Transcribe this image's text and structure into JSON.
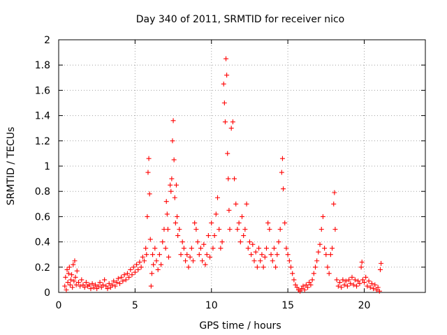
{
  "chart_data": {
    "type": "scatter",
    "title": "Day 340 of 2011, SRMTID for receiver nico",
    "xlabel": "GPS time / hours",
    "ylabel": "SRMTID / TECUs",
    "xlim": [
      0,
      24
    ],
    "ylim": [
      0,
      2
    ],
    "xticks": [
      0,
      5,
      10,
      15,
      20
    ],
    "yticks": [
      0,
      0.2,
      0.4,
      0.6,
      0.8,
      1,
      1.2,
      1.4,
      1.6,
      1.8,
      2
    ],
    "x_tick_labels": [
      "0",
      "5",
      "10",
      "15",
      "20"
    ],
    "y_tick_labels": [
      "0",
      "0.2",
      "0.4",
      "0.6",
      "0.8",
      "1",
      "1.2",
      "1.4",
      "1.6",
      "1.8",
      "2"
    ],
    "grid": true,
    "legend": "none",
    "marker": "plus",
    "series": [
      {
        "color": "#ff0000",
        "points": [
          [
            0.4,
            0.05
          ],
          [
            0.45,
            0.12
          ],
          [
            0.5,
            0.02
          ],
          [
            0.55,
            0.18
          ],
          [
            0.6,
            0.08
          ],
          [
            0.65,
            0.15
          ],
          [
            0.7,
            0.2
          ],
          [
            0.75,
            0.06
          ],
          [
            0.8,
            0.1
          ],
          [
            0.85,
            0.14
          ],
          [
            0.9,
            0.04
          ],
          [
            0.95,
            0.22
          ],
          [
            1.0,
            0.09
          ],
          [
            1.05,
            0.25
          ],
          [
            1.1,
            0.12
          ],
          [
            1.15,
            0.06
          ],
          [
            1.2,
            0.17
          ],
          [
            1.3,
            0.08
          ],
          [
            1.4,
            0.05
          ],
          [
            1.5,
            0.1
          ],
          [
            1.6,
            0.06
          ],
          [
            1.7,
            0.04
          ],
          [
            1.8,
            0.08
          ],
          [
            1.9,
            0.05
          ],
          [
            2.0,
            0.06
          ],
          [
            2.1,
            0.03
          ],
          [
            2.2,
            0.07
          ],
          [
            2.3,
            0.04
          ],
          [
            2.4,
            0.06
          ],
          [
            2.5,
            0.03
          ],
          [
            2.6,
            0.05
          ],
          [
            2.7,
            0.08
          ],
          [
            2.8,
            0.04
          ],
          [
            2.9,
            0.06
          ],
          [
            3.0,
            0.1
          ],
          [
            3.1,
            0.05
          ],
          [
            3.2,
            0.03
          ],
          [
            3.3,
            0.07
          ],
          [
            3.4,
            0.04
          ],
          [
            3.5,
            0.06
          ],
          [
            3.6,
            0.09
          ],
          [
            3.7,
            0.05
          ],
          [
            3.8,
            0.08
          ],
          [
            3.9,
            0.11
          ],
          [
            4.0,
            0.07
          ],
          [
            4.1,
            0.12
          ],
          [
            4.2,
            0.09
          ],
          [
            4.3,
            0.14
          ],
          [
            4.4,
            0.1
          ],
          [
            4.5,
            0.15
          ],
          [
            4.6,
            0.12
          ],
          [
            4.7,
            0.18
          ],
          [
            4.8,
            0.14
          ],
          [
            4.9,
            0.2
          ],
          [
            5.0,
            0.16
          ],
          [
            5.1,
            0.22
          ],
          [
            5.2,
            0.18
          ],
          [
            5.3,
            0.24
          ],
          [
            5.4,
            0.2
          ],
          [
            5.5,
            0.28
          ],
          [
            5.6,
            0.25
          ],
          [
            5.7,
            0.35
          ],
          [
            5.75,
            0.3
          ],
          [
            5.8,
            0.6
          ],
          [
            5.85,
            0.95
          ],
          [
            5.9,
            1.06
          ],
          [
            5.95,
            0.78
          ],
          [
            6.0,
            0.42
          ],
          [
            6.05,
            0.05
          ],
          [
            6.1,
            0.15
          ],
          [
            6.15,
            0.3
          ],
          [
            6.2,
            0.22
          ],
          [
            6.3,
            0.35
          ],
          [
            6.4,
            0.25
          ],
          [
            6.5,
            0.18
          ],
          [
            6.6,
            0.3
          ],
          [
            6.7,
            0.22
          ],
          [
            6.8,
            0.4
          ],
          [
            6.9,
            0.5
          ],
          [
            7.0,
            0.35
          ],
          [
            7.05,
            0.72
          ],
          [
            7.1,
            0.62
          ],
          [
            7.15,
            0.5
          ],
          [
            7.2,
            0.28
          ],
          [
            7.3,
            0.85
          ],
          [
            7.35,
            0.8
          ],
          [
            7.4,
            0.9
          ],
          [
            7.45,
            1.2
          ],
          [
            7.5,
            1.36
          ],
          [
            7.55,
            1.05
          ],
          [
            7.6,
            0.75
          ],
          [
            7.65,
            0.55
          ],
          [
            7.7,
            0.85
          ],
          [
            7.75,
            0.6
          ],
          [
            7.8,
            0.45
          ],
          [
            7.9,
            0.5
          ],
          [
            8.0,
            0.3
          ],
          [
            8.1,
            0.4
          ],
          [
            8.2,
            0.35
          ],
          [
            8.3,
            0.25
          ],
          [
            8.4,
            0.3
          ],
          [
            8.5,
            0.2
          ],
          [
            8.6,
            0.28
          ],
          [
            8.7,
            0.35
          ],
          [
            8.8,
            0.25
          ],
          [
            8.9,
            0.55
          ],
          [
            9.0,
            0.5
          ],
          [
            9.1,
            0.4
          ],
          [
            9.2,
            0.3
          ],
          [
            9.3,
            0.35
          ],
          [
            9.4,
            0.25
          ],
          [
            9.5,
            0.38
          ],
          [
            9.6,
            0.22
          ],
          [
            9.7,
            0.3
          ],
          [
            9.8,
            0.45
          ],
          [
            9.9,
            0.28
          ],
          [
            10.0,
            0.55
          ],
          [
            10.1,
            0.35
          ],
          [
            10.2,
            0.45
          ],
          [
            10.3,
            0.62
          ],
          [
            10.4,
            0.75
          ],
          [
            10.5,
            0.5
          ],
          [
            10.6,
            0.35
          ],
          [
            10.7,
            0.4
          ],
          [
            10.8,
            1.65
          ],
          [
            10.85,
            1.5
          ],
          [
            10.9,
            1.35
          ],
          [
            10.95,
            1.85
          ],
          [
            11.0,
            1.72
          ],
          [
            11.05,
            1.1
          ],
          [
            11.1,
            0.9
          ],
          [
            11.15,
            0.65
          ],
          [
            11.2,
            0.5
          ],
          [
            11.3,
            1.3
          ],
          [
            11.4,
            1.35
          ],
          [
            11.5,
            0.9
          ],
          [
            11.6,
            0.7
          ],
          [
            11.7,
            0.5
          ],
          [
            11.8,
            0.55
          ],
          [
            11.9,
            0.4
          ],
          [
            12.0,
            0.6
          ],
          [
            12.1,
            0.45
          ],
          [
            12.2,
            0.5
          ],
          [
            12.3,
            0.7
          ],
          [
            12.4,
            0.35
          ],
          [
            12.5,
            0.4
          ],
          [
            12.6,
            0.3
          ],
          [
            12.7,
            0.38
          ],
          [
            12.8,
            0.25
          ],
          [
            12.9,
            0.32
          ],
          [
            13.0,
            0.2
          ],
          [
            13.1,
            0.35
          ],
          [
            13.2,
            0.25
          ],
          [
            13.3,
            0.3
          ],
          [
            13.4,
            0.2
          ],
          [
            13.5,
            0.28
          ],
          [
            13.6,
            0.35
          ],
          [
            13.7,
            0.55
          ],
          [
            13.8,
            0.5
          ],
          [
            13.9,
            0.3
          ],
          [
            14.0,
            0.25
          ],
          [
            14.1,
            0.35
          ],
          [
            14.2,
            0.2
          ],
          [
            14.3,
            0.3
          ],
          [
            14.4,
            0.4
          ],
          [
            14.5,
            0.5
          ],
          [
            14.6,
            0.95
          ],
          [
            14.65,
            1.06
          ],
          [
            14.7,
            0.82
          ],
          [
            14.8,
            0.55
          ],
          [
            14.9,
            0.35
          ],
          [
            15.0,
            0.3
          ],
          [
            15.1,
            0.25
          ],
          [
            15.2,
            0.2
          ],
          [
            15.3,
            0.15
          ],
          [
            15.4,
            0.1
          ],
          [
            15.5,
            0.06
          ],
          [
            15.6,
            0.04
          ],
          [
            15.7,
            0.02
          ],
          [
            15.8,
            0.01
          ],
          [
            15.9,
            0.03
          ],
          [
            16.0,
            0.05
          ],
          [
            16.1,
            0.02
          ],
          [
            16.2,
            0.06
          ],
          [
            16.3,
            0.04
          ],
          [
            16.4,
            0.08
          ],
          [
            16.5,
            0.06
          ],
          [
            16.6,
            0.1
          ],
          [
            16.7,
            0.15
          ],
          [
            16.8,
            0.2
          ],
          [
            16.9,
            0.25
          ],
          [
            17.0,
            0.32
          ],
          [
            17.1,
            0.38
          ],
          [
            17.2,
            0.5
          ],
          [
            17.3,
            0.6
          ],
          [
            17.4,
            0.35
          ],
          [
            17.5,
            0.3
          ],
          [
            17.6,
            0.2
          ],
          [
            17.7,
            0.15
          ],
          [
            17.8,
            0.3
          ],
          [
            17.9,
            0.35
          ],
          [
            18.0,
            0.7
          ],
          [
            18.05,
            0.79
          ],
          [
            18.1,
            0.5
          ],
          [
            18.2,
            0.1
          ],
          [
            18.3,
            0.05
          ],
          [
            18.4,
            0.08
          ],
          [
            18.5,
            0.04
          ],
          [
            18.6,
            0.1
          ],
          [
            18.7,
            0.06
          ],
          [
            18.8,
            0.09
          ],
          [
            18.9,
            0.05
          ],
          [
            19.0,
            0.1
          ],
          [
            19.1,
            0.07
          ],
          [
            19.2,
            0.12
          ],
          [
            19.3,
            0.06
          ],
          [
            19.4,
            0.1
          ],
          [
            19.5,
            0.05
          ],
          [
            19.6,
            0.09
          ],
          [
            19.7,
            0.07
          ],
          [
            19.8,
            0.2
          ],
          [
            19.85,
            0.24
          ],
          [
            19.9,
            0.1
          ],
          [
            20.0,
            0.08
          ],
          [
            20.1,
            0.12
          ],
          [
            20.2,
            0.05
          ],
          [
            20.3,
            0.09
          ],
          [
            20.4,
            0.04
          ],
          [
            20.5,
            0.07
          ],
          [
            20.6,
            0.03
          ],
          [
            20.7,
            0.06
          ],
          [
            20.8,
            0.02
          ],
          [
            20.9,
            0.04
          ],
          [
            21.0,
            0.01
          ],
          [
            21.05,
            0.18
          ],
          [
            21.1,
            0.23
          ]
        ]
      }
    ]
  }
}
